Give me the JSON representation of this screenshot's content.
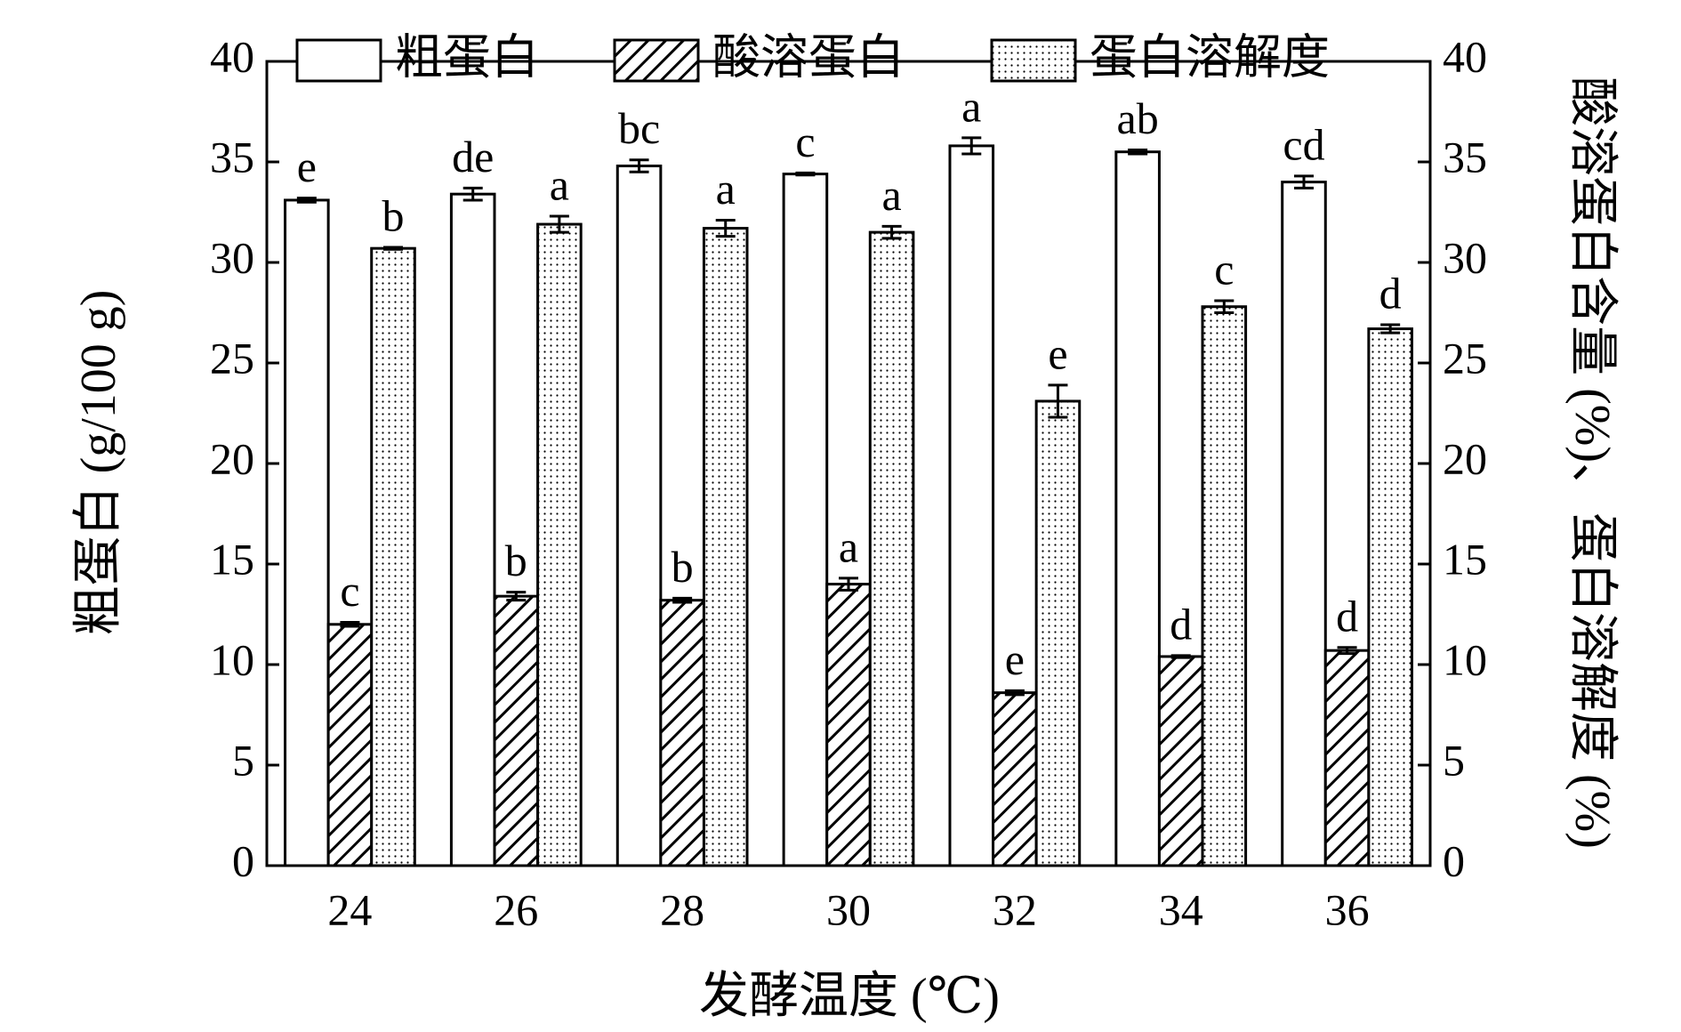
{
  "chart_data": {
    "type": "bar",
    "xlabel": "发酵温度 (℃)",
    "ylabel": "粗蛋白 (g/100 g)",
    "y2label": "酸溶蛋白含量 (%)、蛋白溶解度 (%)",
    "categories": [
      "24",
      "26",
      "28",
      "30",
      "32",
      "34",
      "36"
    ],
    "ylim": [
      0,
      40
    ],
    "yticks": [
      0,
      5,
      10,
      15,
      20,
      25,
      30,
      35,
      40
    ],
    "y2lim": [
      0,
      40
    ],
    "y2ticks": [
      0,
      5,
      10,
      15,
      20,
      25,
      30,
      35,
      40
    ],
    "legend": "top",
    "series": [
      {
        "name": "粗蛋白",
        "color": "#ffffff",
        "fill": "none",
        "values": [
          33.1,
          33.4,
          34.8,
          34.4,
          35.8,
          35.5,
          34.0
        ],
        "errors": [
          0.1,
          0.3,
          0.3,
          0.05,
          0.4,
          0.1,
          0.3
        ],
        "labels": [
          "e",
          "de",
          "bc",
          "c",
          "a",
          "ab",
          "cd"
        ]
      },
      {
        "name": "酸溶蛋白",
        "color": "#ffffff",
        "fill": "hatch",
        "axis": "y2",
        "values": [
          12.0,
          13.4,
          13.2,
          14.0,
          8.6,
          10.4,
          10.7
        ],
        "errors": [
          0.1,
          0.2,
          0.1,
          0.3,
          0.1,
          0.05,
          0.15
        ],
        "labels": [
          "c",
          "b",
          "b",
          "a",
          "e",
          "d",
          "d"
        ]
      },
      {
        "name": "蛋白溶解度",
        "color": "#ffffff",
        "fill": "dots",
        "axis": "y2",
        "values": [
          30.7,
          31.9,
          31.7,
          31.5,
          23.1,
          27.8,
          26.7
        ],
        "errors": [
          0.05,
          0.4,
          0.4,
          0.3,
          0.8,
          0.3,
          0.2
        ],
        "labels": [
          "b",
          "a",
          "a",
          "a",
          "e",
          "c",
          "d"
        ]
      }
    ]
  }
}
